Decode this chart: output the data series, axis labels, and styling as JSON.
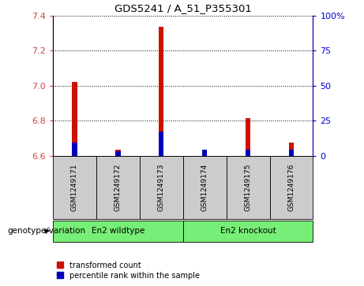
{
  "title": "GDS5241 / A_51_P355301",
  "samples": [
    "GSM1249171",
    "GSM1249172",
    "GSM1249173",
    "GSM1249174",
    "GSM1249175",
    "GSM1249176"
  ],
  "red_values": [
    7.02,
    6.635,
    7.335,
    6.62,
    6.815,
    6.675
  ],
  "blue_values": [
    6.675,
    6.625,
    6.74,
    6.635,
    6.635,
    6.635
  ],
  "ylim_left": [
    6.6,
    7.4
  ],
  "ylim_right": [
    0,
    100
  ],
  "yticks_left": [
    6.6,
    6.8,
    7.0,
    7.2,
    7.4
  ],
  "yticks_right": [
    0,
    25,
    50,
    75,
    100
  ],
  "group1_label": "En2 wildtype",
  "group2_label": "En2 knockout",
  "group_color": "#77EE77",
  "group_row_label": "genotype/variation",
  "legend_red": "transformed count",
  "legend_blue": "percentile rank within the sample",
  "bar_width": 0.12,
  "sample_bg_color": "#cccccc",
  "plot_bg_color": "#ffffff",
  "red_color": "#cc1100",
  "blue_color": "#0000bb",
  "left_axis_color": "#cc4444",
  "right_axis_color": "#0000cc"
}
